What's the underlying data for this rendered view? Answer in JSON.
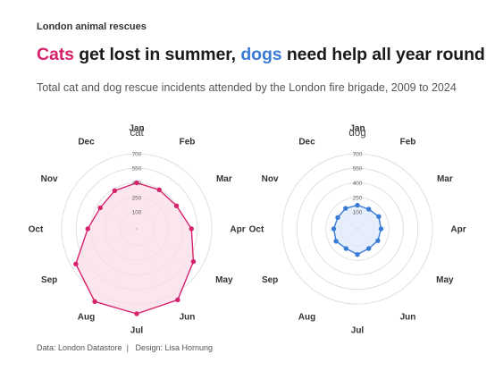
{
  "header": {
    "kicker": "London animal rescues",
    "title_cat": "Cats",
    "title_mid": " get lost in summer, ",
    "title_dog": "dogs",
    "title_end": " need help all year round",
    "subtitle": "Total cat and dog rescue incidents attended by the London fire brigade, 2009 to 2024"
  },
  "footer": {
    "source": "Data: London Datastore",
    "separator": "|",
    "design": "Design: Lisa Hornung"
  },
  "colors": {
    "cat": "#d6226c",
    "cat_fill": "#f9dde8",
    "dog": "#3a7bd5",
    "dog_fill": "#dce8f8",
    "grid": "#d9d9d9"
  },
  "chart_data": [
    {
      "type": "radar",
      "title": "cat",
      "categories": [
        "Jan",
        "Feb",
        "Mar",
        "Apr",
        "May",
        "Jun",
        "Jul",
        "Aug",
        "Sep",
        "Oct",
        "Nov",
        "Dec"
      ],
      "values": [
        400,
        390,
        400,
        490,
        600,
        770,
        800,
        790,
        650,
        430,
        360,
        380
      ],
      "rticks": [
        100,
        250,
        400,
        550,
        700
      ],
      "rmax": 800
    },
    {
      "type": "radar",
      "title": "dog",
      "categories": [
        "Jan",
        "Feb",
        "Mar",
        "Apr",
        "May",
        "Jun",
        "Jul",
        "Aug",
        "Sep",
        "Oct",
        "Nov",
        "Dec"
      ],
      "values": [
        170,
        160,
        180,
        170,
        170,
        160,
        190,
        160,
        180,
        170,
        160,
        170
      ],
      "rticks": [
        100,
        250,
        400,
        550,
        700
      ],
      "rmax": 800
    }
  ]
}
